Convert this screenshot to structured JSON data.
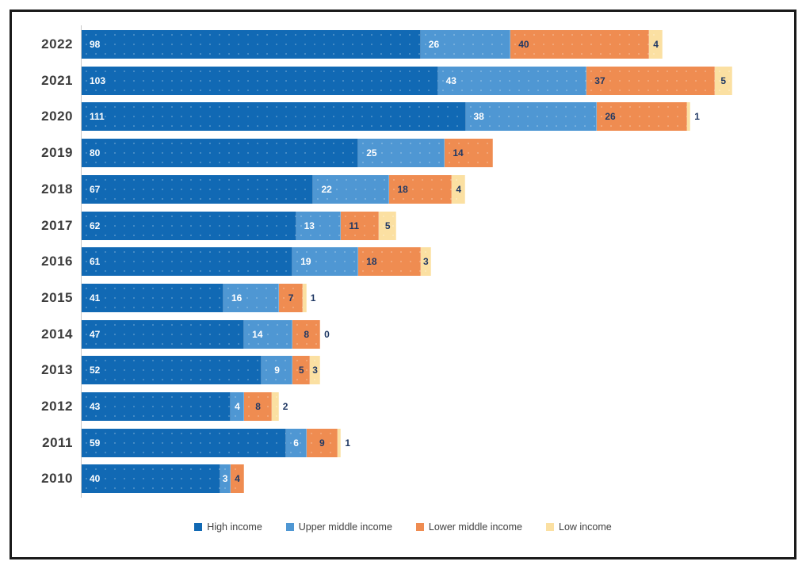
{
  "chart_data": {
    "type": "bar",
    "orientation": "horizontal",
    "stacked": true,
    "title": "",
    "categories": [
      "2022",
      "2021",
      "2020",
      "2019",
      "2018",
      "2017",
      "2016",
      "2015",
      "2014",
      "2013",
      "2012",
      "2011",
      "2010"
    ],
    "series": [
      {
        "name": "High income",
        "color": "#1169B4",
        "label_color": "#FFFFFF",
        "values": [
          98,
          103,
          111,
          80,
          67,
          62,
          61,
          41,
          47,
          52,
          43,
          59,
          40
        ]
      },
      {
        "name": "Upper middle income",
        "color": "#4F97D3",
        "label_color": "#FFFFFF",
        "values": [
          26,
          43,
          38,
          25,
          22,
          13,
          19,
          16,
          14,
          9,
          4,
          6,
          3
        ]
      },
      {
        "name": "Lower middle income",
        "color": "#EF8C51",
        "label_color": "#1F3864",
        "values": [
          40,
          37,
          26,
          14,
          18,
          11,
          18,
          7,
          8,
          5,
          8,
          9,
          4
        ]
      },
      {
        "name": "Low income",
        "color": "#FBE0A2",
        "label_color": "#1F3864",
        "values": [
          4,
          5,
          1,
          null,
          4,
          5,
          3,
          1,
          0,
          3,
          2,
          1,
          null
        ]
      }
    ],
    "value_labels": true,
    "legend_position": "bottom",
    "axis": {
      "baseline_color": "#C9C9C9"
    },
    "category_label_color": "#3D3D3D",
    "legend_text_color": "#404040",
    "frame_border_color": "#1A1A1A"
  }
}
